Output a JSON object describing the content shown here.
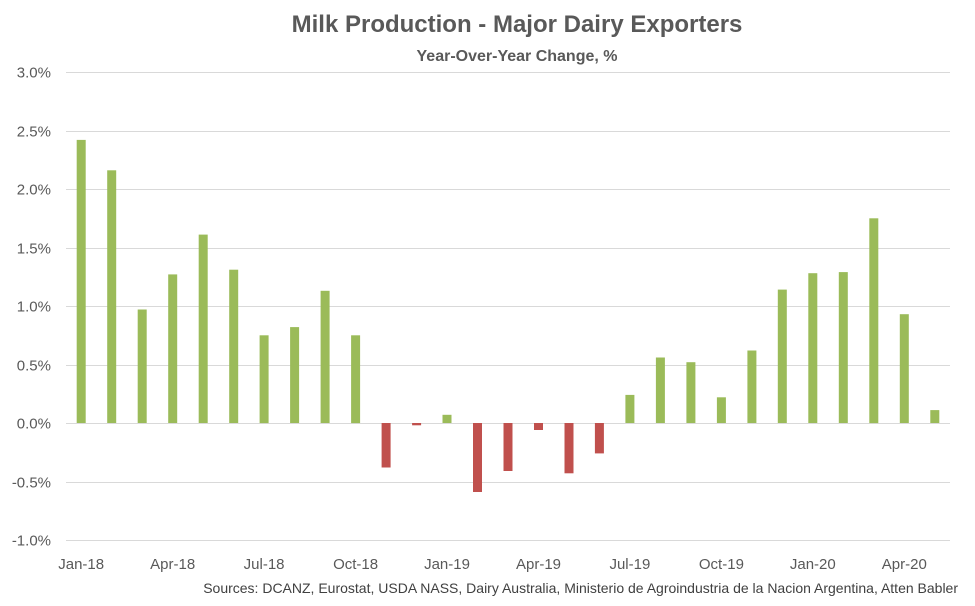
{
  "chart_data": {
    "type": "bar",
    "title": "Milk Production - Major Dairy Exporters",
    "subtitle": "Year-Over-Year Change, %",
    "source": "Sources: DCANZ, Eurostat, USDA NASS, Dairy Australia, Ministerio de Agroindustria de la Nacion Argentina, Atten Babler",
    "xlabel": "",
    "ylabel": "",
    "ylim": [
      -1.0,
      3.0
    ],
    "yticks": [
      3.0,
      2.5,
      2.0,
      1.5,
      1.0,
      0.5,
      0.0,
      -0.5,
      -1.0
    ],
    "ytick_labels": [
      "3.0%",
      "2.5%",
      "2.0%",
      "1.5%",
      "1.0%",
      "0.5%",
      "0.0%",
      "-0.5%",
      "-1.0%"
    ],
    "grid": true,
    "legend": "none",
    "categories": [
      "Jan-18",
      "Feb-18",
      "Mar-18",
      "Apr-18",
      "May-18",
      "Jun-18",
      "Jul-18",
      "Aug-18",
      "Sep-18",
      "Oct-18",
      "Nov-18",
      "Dec-18",
      "Jan-19",
      "Feb-19",
      "Mar-19",
      "Apr-19",
      "May-19",
      "Jun-19",
      "Jul-19",
      "Aug-19",
      "Sep-19",
      "Oct-19",
      "Nov-19",
      "Dec-19",
      "Jan-20",
      "Feb-20",
      "Mar-20",
      "Apr-20",
      "May-20"
    ],
    "xtick_labels": [
      "Jan-18",
      "Apr-18",
      "Jul-18",
      "Oct-18",
      "Jan-19",
      "Apr-19",
      "Jul-19",
      "Oct-19",
      "Jan-20",
      "Apr-20"
    ],
    "xtick_indices": [
      0,
      3,
      6,
      9,
      12,
      15,
      18,
      21,
      24,
      27
    ],
    "values": [
      2.42,
      2.16,
      0.97,
      1.27,
      1.61,
      1.31,
      0.75,
      0.82,
      1.13,
      0.75,
      -0.38,
      -0.02,
      0.07,
      -0.59,
      -0.41,
      -0.06,
      -0.43,
      -0.26,
      0.24,
      0.56,
      0.52,
      0.22,
      0.62,
      1.14,
      1.28,
      1.29,
      1.75,
      0.93,
      0.11
    ],
    "colors": {
      "positive": "#9bbb59",
      "negative": "#c0504d",
      "grid": "#d9d9d9",
      "text": "#595959",
      "title": "#595959"
    }
  }
}
